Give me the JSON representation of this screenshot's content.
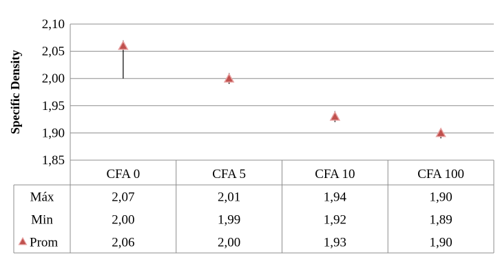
{
  "chart_data": {
    "type": "scatter",
    "ylabel": "Specific Density",
    "ylim": [
      1.85,
      2.1
    ],
    "yticks": [
      1.85,
      1.9,
      1.95,
      2.0,
      2.05,
      2.1
    ],
    "ytick_labels": [
      "1,85",
      "1,90",
      "1,95",
      "2,00",
      "2,05",
      "2,10"
    ],
    "grid": true,
    "categories": [
      "CFA 0",
      "CFA 5",
      "CFA 10",
      "CFA 100"
    ],
    "series": [
      {
        "name": "Máx",
        "values": [
          2.07,
          2.01,
          1.94,
          1.9
        ],
        "labels": [
          "2,07",
          "2,01",
          "1,94",
          "1,90"
        ]
      },
      {
        "name": "Min",
        "values": [
          2.0,
          1.99,
          1.92,
          1.89
        ],
        "labels": [
          "2,00",
          "1,99",
          "1,92",
          "1,89"
        ]
      },
      {
        "name": "Prom",
        "values": [
          2.06,
          2.0,
          1.93,
          1.9
        ],
        "labels": [
          "2,06",
          "2,00",
          "1,93",
          "1,90"
        ],
        "marker": "triangle"
      }
    ],
    "marker_color": "#c0504d",
    "marker_stroke": "#e6a0a0"
  }
}
